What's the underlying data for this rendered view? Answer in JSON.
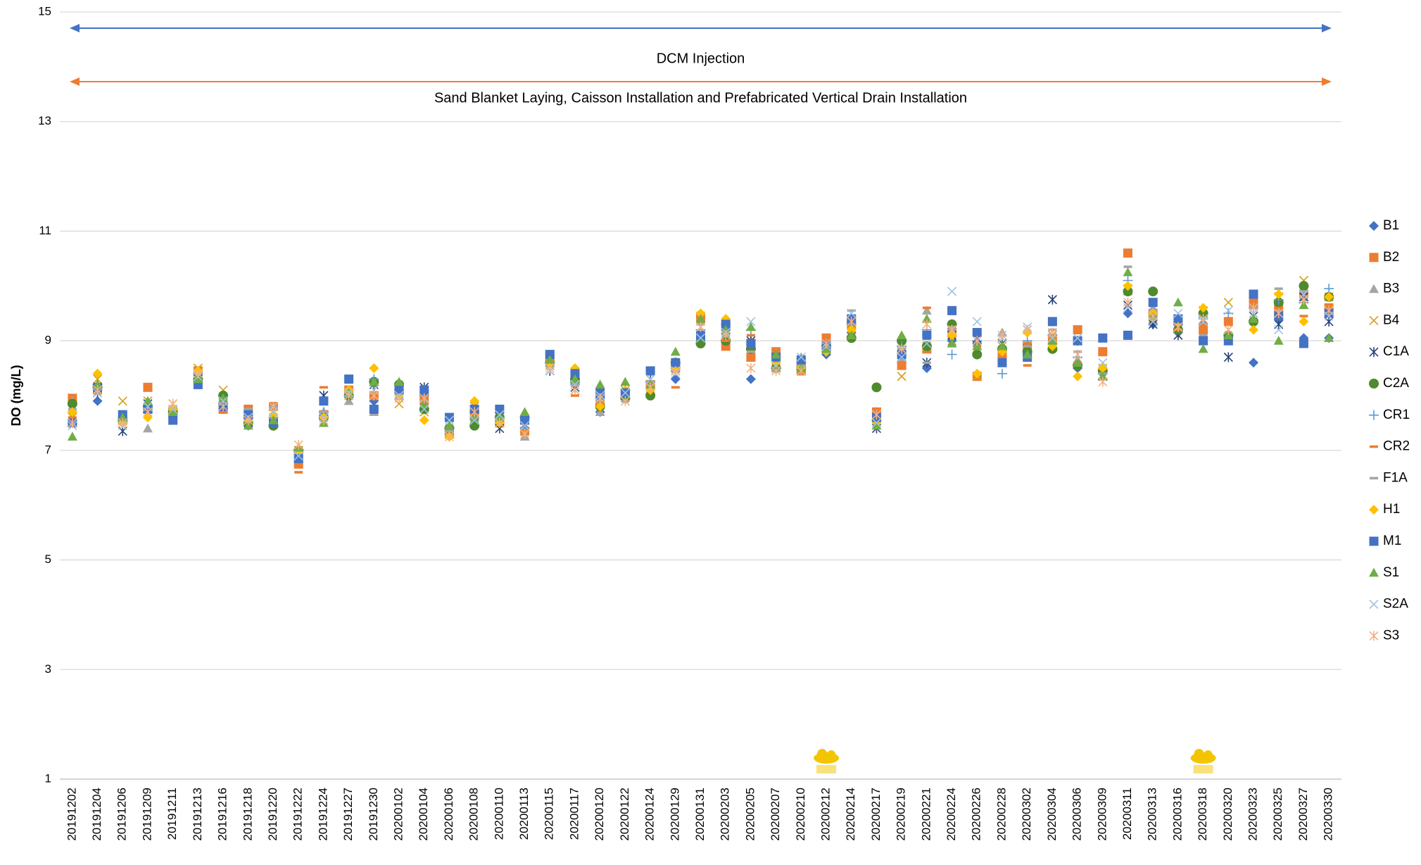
{
  "chart_data": {
    "type": "scatter",
    "y_label": "DO (mg/L)",
    "ylim": [
      1,
      15
    ],
    "yticks": [
      1,
      3,
      5,
      7,
      9,
      11,
      13,
      15
    ],
    "grid": true,
    "legend": "right",
    "annotations": [
      {
        "text": "DCM Injection",
        "color": "#4472c4"
      },
      {
        "text": "Sand Blanket  Laying, Caisson Installation and Prefabricated Vertical Drain Installation",
        "color": "#ed7d31"
      }
    ],
    "categories": [
      "20191202",
      "20191204",
      "20191206",
      "20191209",
      "20191211",
      "20191213",
      "20191216",
      "20191218",
      "20191220",
      "20191222",
      "20191224",
      "20191227",
      "20191230",
      "20200102",
      "20200104",
      "20200106",
      "20200108",
      "20200110",
      "20200113",
      "20200115",
      "20200117",
      "20200120",
      "20200122",
      "20200124",
      "20200129",
      "20200131",
      "20200203",
      "20200205",
      "20200207",
      "20200210",
      "20200212",
      "20200214",
      "20200217",
      "20200219",
      "20200221",
      "20200224",
      "20200226",
      "20200228",
      "20200302",
      "20200304",
      "20200306",
      "20200309",
      "20200311",
      "20200313",
      "20200316",
      "20200318",
      "20200320",
      "20200323",
      "20200325",
      "20200327",
      "20200330"
    ],
    "series": [
      {
        "name": "B1",
        "color": "#4472c4",
        "marker": "diamond",
        "values": [
          7.5,
          7.9,
          7.6,
          7.75,
          7.6,
          8.25,
          7.75,
          7.45,
          7.45,
          6.95,
          7.6,
          8.0,
          7.9,
          8.05,
          8.0,
          7.35,
          7.6,
          7.5,
          7.4,
          8.6,
          8.2,
          7.7,
          7.95,
          8.15,
          8.3,
          9.0,
          9.2,
          8.3,
          8.5,
          8.55,
          8.75,
          9.15,
          7.7,
          8.6,
          8.5,
          9.0,
          8.95,
          8.7,
          8.8,
          8.95,
          8.5,
          8.4,
          9.5,
          9.3,
          9.15,
          9.3,
          9.1,
          8.6,
          9.4,
          9.05,
          9.05
        ]
      },
      {
        "name": "B2",
        "color": "#ed7d31",
        "marker": "square",
        "values": [
          7.95,
          8.1,
          7.55,
          8.15,
          7.7,
          8.45,
          7.75,
          7.75,
          7.8,
          6.75,
          7.65,
          8.1,
          8.0,
          8.1,
          7.9,
          7.3,
          7.65,
          7.5,
          7.35,
          8.7,
          8.35,
          7.85,
          8.0,
          8.2,
          8.5,
          9.4,
          8.9,
          8.7,
          8.8,
          8.45,
          9.05,
          9.3,
          7.7,
          8.55,
          8.85,
          9.15,
          8.35,
          8.75,
          8.9,
          9.05,
          9.2,
          8.8,
          10.6,
          9.5,
          9.35,
          9.2,
          9.35,
          9.7,
          9.6,
          9.85,
          9.6
        ]
      },
      {
        "name": "B3",
        "color": "#a5a5a5",
        "marker": "triangle",
        "values": [
          7.9,
          8.2,
          7.6,
          7.4,
          7.7,
          8.4,
          8.0,
          7.7,
          7.8,
          7.05,
          7.7,
          7.9,
          7.7,
          8.0,
          8.1,
          7.4,
          7.55,
          7.7,
          7.25,
          8.6,
          8.3,
          7.7,
          8.0,
          8.1,
          8.6,
          9.4,
          9.1,
          9.0,
          8.5,
          8.7,
          8.9,
          9.4,
          7.6,
          8.7,
          9.55,
          9.25,
          8.9,
          9.15,
          8.8,
          9.0,
          8.65,
          8.5,
          9.9,
          9.6,
          9.2,
          9.5,
          9.0,
          9.4,
          9.55,
          9.8,
          9.8
        ]
      },
      {
        "name": "B4",
        "color": "#d4a017",
        "marker": "x",
        "values": [
          7.6,
          8.3,
          7.9,
          7.9,
          7.85,
          8.5,
          8.1,
          7.6,
          7.7,
          7.0,
          7.6,
          8.1,
          8.1,
          7.85,
          7.7,
          7.3,
          7.8,
          7.55,
          7.35,
          8.55,
          8.1,
          7.9,
          8.1,
          8.2,
          8.55,
          9.45,
          9.3,
          8.9,
          8.5,
          8.5,
          8.85,
          9.2,
          7.5,
          8.35,
          8.9,
          9.0,
          8.35,
          8.9,
          9.2,
          9.1,
          9.0,
          8.5,
          9.95,
          9.4,
          9.1,
          9.55,
          9.7,
          9.5,
          9.8,
          10.1,
          9.8
        ]
      },
      {
        "name": "C1A",
        "color": "#264478",
        "marker": "star",
        "values": [
          7.5,
          8.05,
          7.35,
          7.85,
          7.7,
          8.3,
          7.8,
          7.5,
          7.5,
          6.9,
          8.0,
          8.0,
          8.2,
          8.0,
          8.15,
          7.5,
          7.5,
          7.4,
          7.45,
          8.45,
          8.15,
          7.9,
          8.0,
          8.3,
          8.45,
          9.1,
          9.2,
          9.0,
          8.6,
          8.6,
          8.95,
          9.35,
          7.4,
          8.8,
          8.6,
          9.1,
          9.05,
          8.95,
          8.85,
          9.75,
          9.0,
          8.35,
          9.65,
          9.3,
          9.1,
          9.0,
          8.7,
          9.45,
          9.3,
          9.8,
          9.35
        ]
      },
      {
        "name": "C2A",
        "color": "#4e8a2e",
        "marker": "circle",
        "values": [
          7.85,
          8.15,
          7.55,
          7.8,
          7.7,
          8.3,
          8.0,
          7.5,
          7.45,
          7.0,
          7.6,
          8.0,
          8.25,
          8.2,
          7.75,
          7.4,
          7.45,
          7.6,
          7.6,
          8.6,
          8.3,
          7.8,
          7.95,
          8.0,
          8.6,
          8.95,
          9.0,
          8.85,
          8.5,
          8.5,
          8.9,
          9.05,
          8.15,
          9.0,
          8.9,
          9.3,
          8.75,
          8.85,
          8.8,
          8.85,
          8.55,
          8.45,
          9.9,
          9.9,
          9.2,
          9.5,
          9.1,
          9.35,
          9.7,
          10.0,
          9.8
        ]
      },
      {
        "name": "CR1",
        "color": "#5b9bd5",
        "marker": "plus",
        "values": [
          7.7,
          8.2,
          7.5,
          7.7,
          7.75,
          8.4,
          7.85,
          7.6,
          7.6,
          6.95,
          7.7,
          8.1,
          8.3,
          8.1,
          8.0,
          7.3,
          7.7,
          7.6,
          7.4,
          8.6,
          8.25,
          7.95,
          8.1,
          8.25,
          8.5,
          9.2,
          9.3,
          9.2,
          8.7,
          8.6,
          8.8,
          9.3,
          7.55,
          8.9,
          9.2,
          8.75,
          9.0,
          8.4,
          9.0,
          9.1,
          8.7,
          8.3,
          10.1,
          9.5,
          9.3,
          9.4,
          9.5,
          9.6,
          9.75,
          9.7,
          9.95
        ]
      },
      {
        "name": "CR2",
        "color": "#ed7d31",
        "marker": "dash",
        "values": [
          7.6,
          8.2,
          7.5,
          7.75,
          7.8,
          8.45,
          7.9,
          7.7,
          7.75,
          6.6,
          8.15,
          8.15,
          8.0,
          8.05,
          8.05,
          7.25,
          7.8,
          7.55,
          7.35,
          8.65,
          8.0,
          7.85,
          8.0,
          8.2,
          8.15,
          9.35,
          9.0,
          9.1,
          8.75,
          8.5,
          8.9,
          9.4,
          7.7,
          8.8,
          9.6,
          9.6,
          8.9,
          8.8,
          8.55,
          9.0,
          8.6,
          8.3,
          10.55,
          9.4,
          9.2,
          9.3,
          9.4,
          9.75,
          9.6,
          9.45,
          9.65
        ]
      },
      {
        "name": "F1A",
        "color": "#a5a5a5",
        "marker": "dash",
        "values": [
          7.75,
          8.1,
          7.6,
          7.8,
          7.8,
          8.4,
          7.9,
          7.75,
          7.8,
          6.85,
          7.7,
          8.05,
          7.7,
          7.95,
          7.9,
          7.35,
          7.6,
          7.55,
          7.5,
          8.7,
          8.2,
          7.9,
          7.9,
          8.15,
          8.55,
          9.3,
          9.1,
          8.8,
          8.45,
          8.55,
          8.85,
          9.55,
          7.6,
          8.85,
          8.6,
          9.25,
          9.1,
          9.1,
          8.9,
          9.2,
          8.8,
          8.4,
          10.35,
          9.45,
          9.4,
          9.1,
          9.0,
          9.6,
          9.95,
          9.9,
          9.5
        ]
      },
      {
        "name": "H1",
        "color": "#ffc000",
        "marker": "diamond",
        "values": [
          7.7,
          8.4,
          7.5,
          7.6,
          7.75,
          8.45,
          7.85,
          7.55,
          7.65,
          6.95,
          7.6,
          8.1,
          8.5,
          8.0,
          7.55,
          7.25,
          7.9,
          7.5,
          7.6,
          8.6,
          8.5,
          7.8,
          8.1,
          8.1,
          8.5,
          9.5,
          9.4,
          8.95,
          8.6,
          8.5,
          8.8,
          9.2,
          7.5,
          8.8,
          9.1,
          9.1,
          8.4,
          8.8,
          9.15,
          8.9,
          8.35,
          8.5,
          10.0,
          9.5,
          9.35,
          9.6,
          9.0,
          9.2,
          9.85,
          9.35,
          9.8
        ]
      },
      {
        "name": "M1",
        "color": "#4472c4",
        "marker": "square",
        "values": [
          7.5,
          8.15,
          7.65,
          7.75,
          7.55,
          8.2,
          7.8,
          7.65,
          7.5,
          6.85,
          7.9,
          8.3,
          7.75,
          8.1,
          8.1,
          7.6,
          7.75,
          7.75,
          7.55,
          8.75,
          8.4,
          8.05,
          8.05,
          8.45,
          8.6,
          9.1,
          9.3,
          8.95,
          8.7,
          8.65,
          8.9,
          9.4,
          7.6,
          8.75,
          9.1,
          9.55,
          9.15,
          8.6,
          8.7,
          9.35,
          9.0,
          9.05,
          9.1,
          9.7,
          9.4,
          9.0,
          9.0,
          9.85,
          9.45,
          8.95,
          9.5
        ]
      },
      {
        "name": "S1",
        "color": "#70ad47",
        "marker": "triangle",
        "values": [
          7.25,
          8.2,
          7.6,
          7.9,
          7.7,
          8.3,
          7.95,
          7.45,
          7.55,
          7.05,
          7.5,
          8.05,
          8.25,
          8.25,
          7.85,
          7.45,
          7.6,
          7.6,
          7.7,
          8.65,
          8.3,
          8.2,
          8.25,
          8.2,
          8.8,
          9.4,
          9.2,
          9.25,
          8.75,
          8.5,
          8.85,
          9.1,
          7.45,
          9.1,
          9.4,
          8.95,
          8.9,
          8.9,
          8.75,
          9.0,
          8.6,
          8.35,
          10.25,
          9.45,
          9.7,
          8.85,
          9.1,
          9.4,
          9.0,
          9.65,
          9.05
        ]
      },
      {
        "name": "S2A",
        "color": "#9dc3e6",
        "marker": "x",
        "values": [
          7.45,
          8.05,
          7.45,
          7.8,
          7.75,
          8.35,
          7.9,
          7.6,
          7.7,
          6.9,
          7.6,
          8.05,
          8.1,
          8.0,
          7.75,
          7.55,
          7.55,
          7.65,
          7.45,
          8.45,
          8.2,
          8.0,
          8.05,
          8.3,
          8.4,
          9.05,
          9.15,
          9.35,
          8.55,
          8.7,
          8.9,
          9.5,
          7.5,
          8.7,
          8.95,
          9.9,
          9.35,
          9.05,
          9.25,
          9.05,
          9.05,
          8.6,
          9.6,
          9.35,
          9.5,
          9.35,
          9.55,
          9.5,
          9.2,
          9.85,
          9.45
        ]
      },
      {
        "name": "S3",
        "color": "#f4b183",
        "marker": "star",
        "values": [
          7.5,
          8.1,
          7.5,
          7.7,
          7.85,
          8.4,
          7.8,
          7.55,
          7.8,
          7.1,
          7.55,
          8.0,
          8.0,
          7.95,
          7.95,
          7.25,
          7.7,
          7.5,
          7.3,
          8.5,
          8.1,
          7.95,
          7.9,
          8.15,
          8.45,
          9.25,
          9.1,
          8.5,
          8.45,
          8.45,
          8.95,
          9.35,
          7.65,
          8.85,
          9.3,
          9.2,
          9.0,
          9.1,
          9.2,
          9.15,
          8.75,
          8.25,
          9.7,
          9.45,
          9.25,
          9.4,
          9.2,
          9.6,
          9.5,
          9.75,
          9.55
        ]
      }
    ]
  }
}
